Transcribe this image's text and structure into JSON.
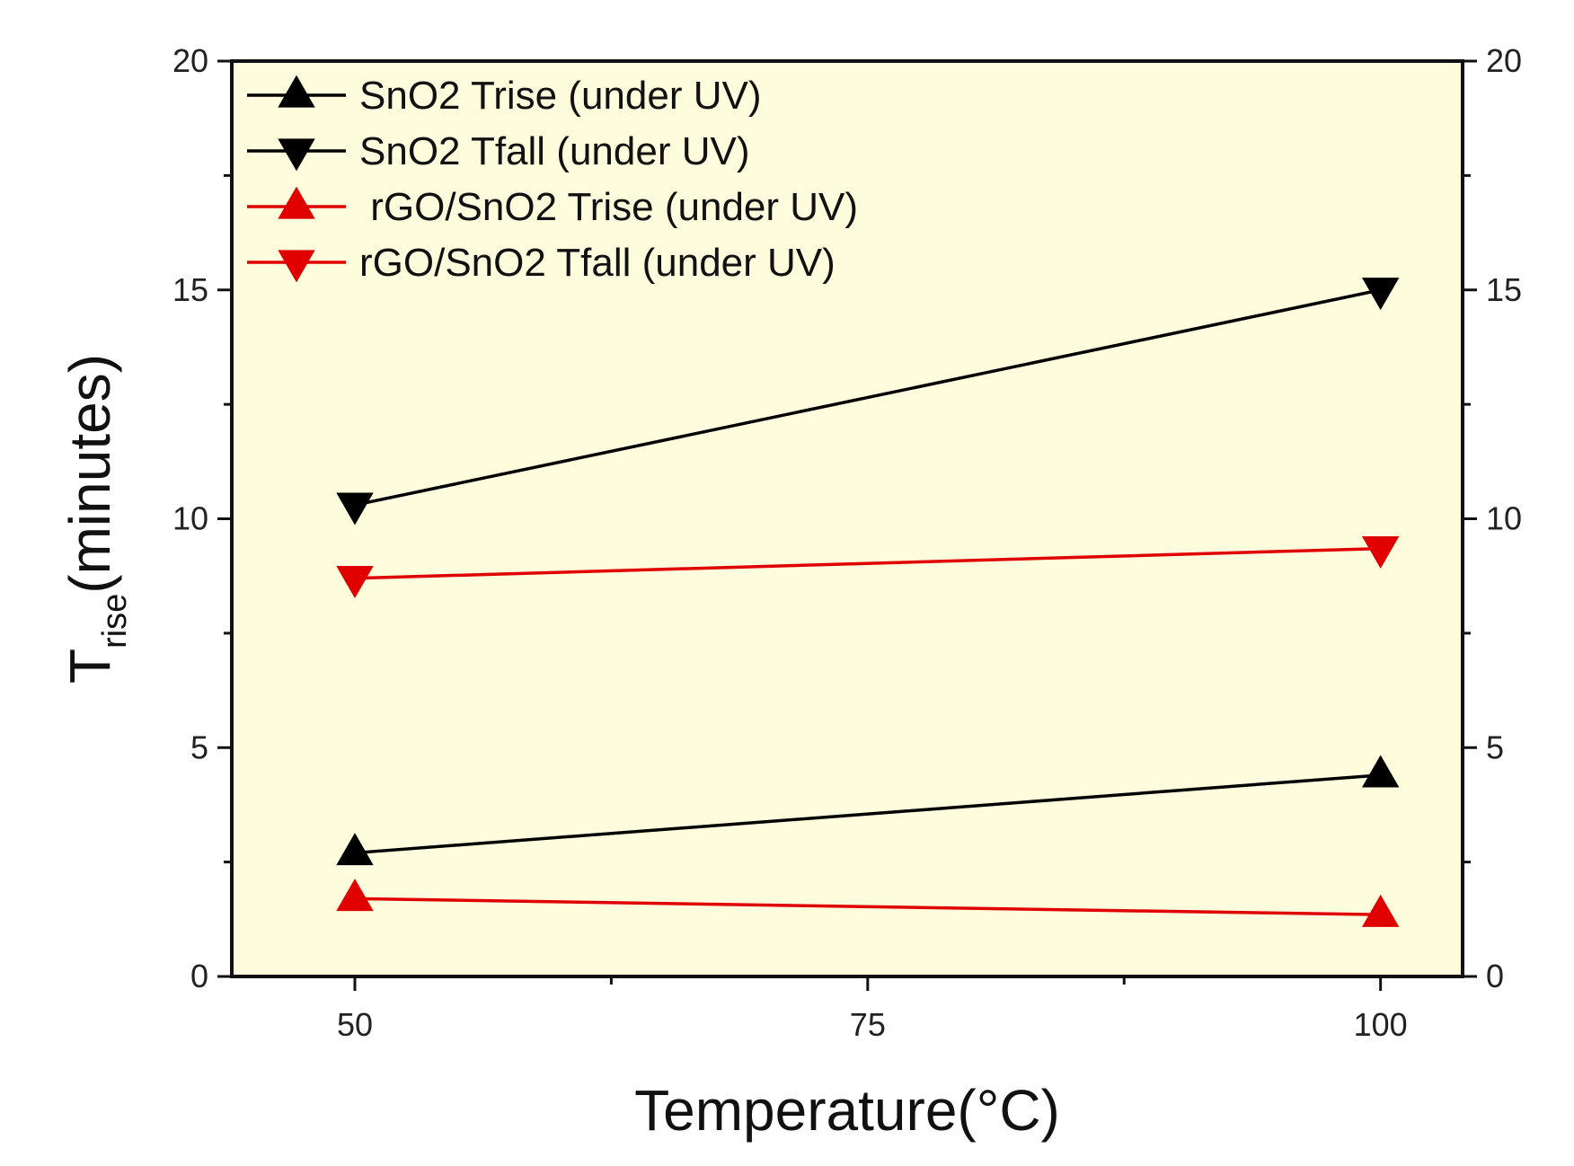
{
  "chart_data": {
    "type": "line",
    "title": "",
    "xlabel": "Temperature(°C)",
    "ylabel_main": "T",
    "ylabel_sub": "rise",
    "ylabel_unit": "(minutes)",
    "x": [
      50,
      100
    ],
    "xlim": [
      44,
      104
    ],
    "ylim": [
      0,
      20
    ],
    "xticks": [
      50,
      75,
      100
    ],
    "yticks": [
      0,
      5,
      10,
      15,
      20
    ],
    "legend_position": "top-left",
    "background": "#fdfcdd",
    "series": [
      {
        "name": "SnO2 Trise (under UV)",
        "values": [
          2.7,
          4.4
        ],
        "color": "#000000",
        "marker": "triangle-up"
      },
      {
        "name": "SnO2 Tfall (under UV)",
        "values": [
          10.3,
          15.0
        ],
        "color": "#000000",
        "marker": "triangle-down"
      },
      {
        "name": " rGO/SnO2 Trise (under UV)",
        "values": [
          1.7,
          1.35
        ],
        "color": "#e00000",
        "marker": "triangle-up"
      },
      {
        "name": "rGO/SnO2 Tfall (under UV)",
        "values": [
          8.7,
          9.35
        ],
        "color": "#e00000",
        "marker": "triangle-down"
      }
    ]
  }
}
